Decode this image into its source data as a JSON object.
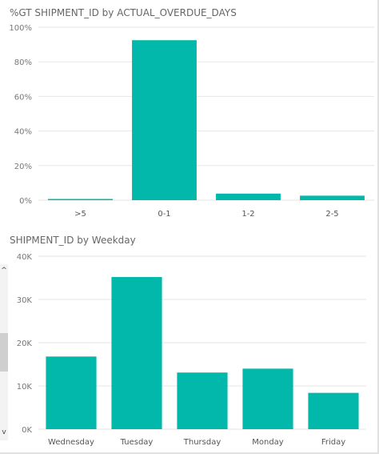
{
  "chart_data": [
    {
      "type": "bar",
      "title": "%GT SHIPMENT_ID by ACTUAL_OVERDUE_DAYS",
      "categories": [
        ">5",
        "0-1",
        "1-2",
        "2-5"
      ],
      "values": [
        0.7,
        92.5,
        3.8,
        2.6
      ],
      "ylim": [
        0,
        100
      ],
      "yticks": [
        "0%",
        "20%",
        "40%",
        "60%",
        "80%",
        "100%"
      ],
      "ytick_values": [
        0,
        20,
        40,
        60,
        80,
        100
      ],
      "grid": true,
      "color": "#01b8aa"
    },
    {
      "type": "bar",
      "title": "SHIPMENT_ID by Weekday",
      "categories": [
        "Wednesday",
        "Tuesday",
        "Thursday",
        "Monday",
        "Friday"
      ],
      "values": [
        16800,
        35200,
        13100,
        14000,
        8400
      ],
      "ylim": [
        0,
        40000
      ],
      "yticks": [
        "0K",
        "10K",
        "20K",
        "30K",
        "40K"
      ],
      "ytick_values": [
        0,
        10000,
        20000,
        30000,
        40000
      ],
      "grid": true,
      "color": "#01b8aa"
    }
  ],
  "scrollbar": {
    "up_icon": "chevron-up-icon",
    "down_icon": "chevron-down-icon",
    "up_glyph": "^",
    "down_glyph": "v"
  }
}
